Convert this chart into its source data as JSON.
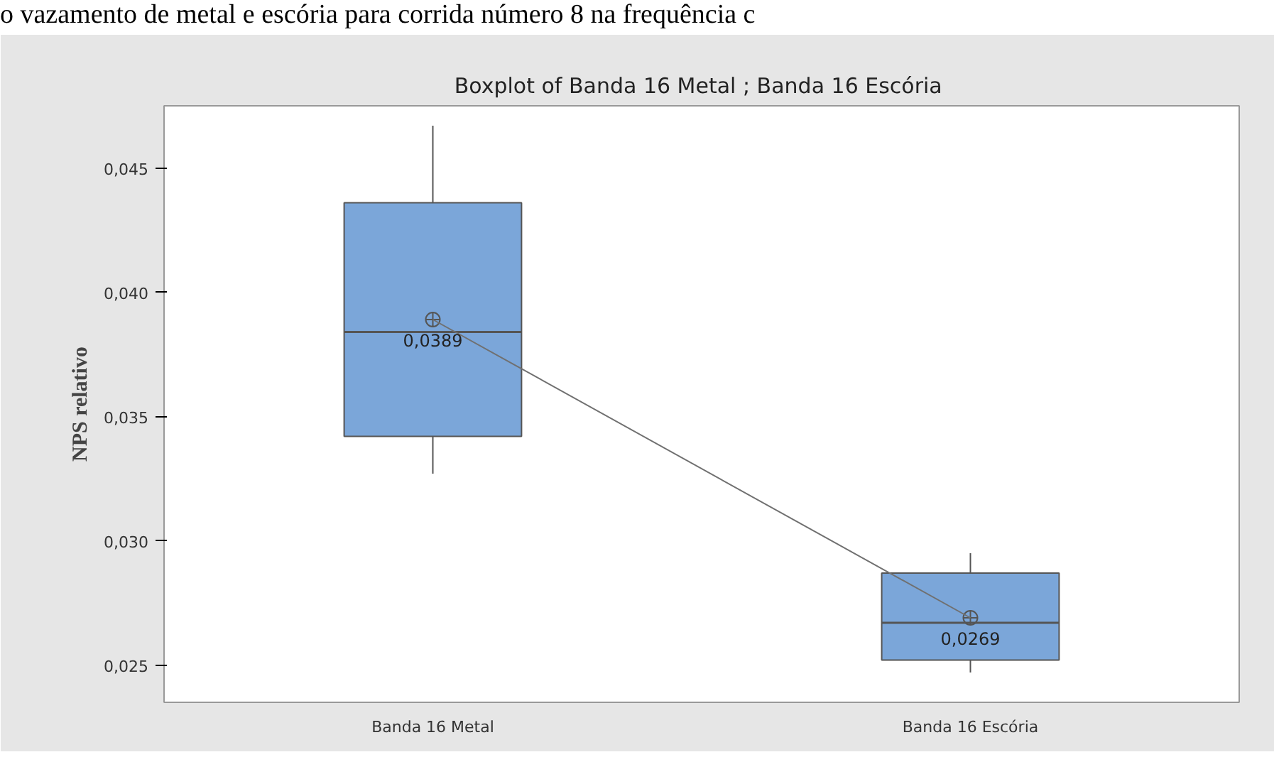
{
  "chart_data": {
    "type": "box",
    "title": "Boxplot of  Banda 16 Metal ; Banda 16 Escória",
    "ylabel": "NPS relativo",
    "annotations": [
      "o vazamento de metal e escória para corrida número 8 na frequência c"
    ],
    "categories": [
      "Banda 16 Metal",
      "Banda 16 Escória"
    ],
    "ylim": [
      0.0235,
      0.0475
    ],
    "yticks": [
      {
        "value": 0.025,
        "label": "0,025"
      },
      {
        "value": 0.03,
        "label": "0,030"
      },
      {
        "value": 0.035,
        "label": "0,035"
      },
      {
        "value": 0.04,
        "label": "0,040"
      },
      {
        "value": 0.045,
        "label": "0,045"
      }
    ],
    "grid": false,
    "series": [
      {
        "color": "#7ba6d9",
        "boxes": [
          {
            "low": 0.0327,
            "q1": 0.0342,
            "median": 0.0384,
            "q3": 0.0436,
            "high": 0.0467,
            "mean": 0.0389
          },
          {
            "low": 0.0247,
            "q1": 0.0252,
            "median": 0.0267,
            "q3": 0.0287,
            "high": 0.0295,
            "mean": 0.0269
          }
        ]
      },
      {
        "type": "line",
        "color": "#707070",
        "x": [
          "Banda 16 Metal",
          "Banda 16 Escória"
        ],
        "values": [
          0.0389,
          0.0269
        ],
        "value_labels": [
          "0,0389",
          "0,0269"
        ]
      }
    ]
  }
}
